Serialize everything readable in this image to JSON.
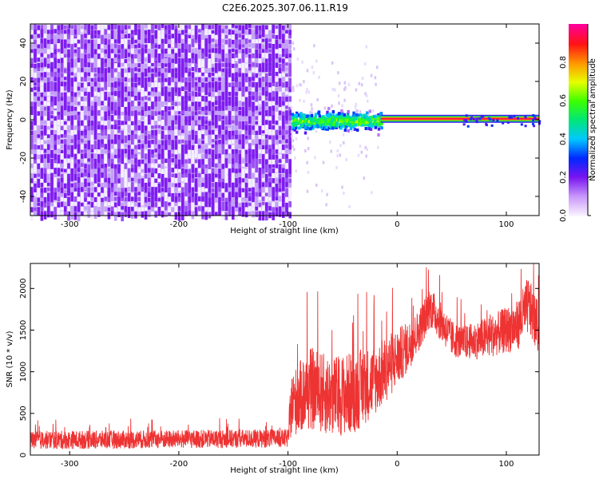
{
  "title": "C2E6.2025.307.06.11.R19",
  "chart_data": [
    {
      "type": "heatmap",
      "name": "spectrogram",
      "xlabel": "Height of straight line (km)",
      "ylabel": "Frequency (Hz)",
      "xlim": [
        -336,
        130
      ],
      "ylim": [
        -50,
        50
      ],
      "xticks": [
        -300,
        -200,
        -100,
        0,
        100
      ],
      "yticks": [
        -40,
        -20,
        0,
        20,
        40
      ],
      "colorbar": {
        "label": "Normalized spectral amplitude",
        "range": [
          0,
          1
        ],
        "ticks": [
          0.0,
          0.2,
          0.4,
          0.6,
          0.8
        ]
      },
      "features": [
        {
          "kind": "noise",
          "x_range": [
            -336,
            -97
          ],
          "f_range": [
            -50,
            50
          ],
          "level": "low"
        },
        {
          "kind": "noise-burst",
          "x_range": [
            -97,
            -15
          ],
          "f_range": [
            -8,
            8
          ],
          "level": "medium"
        },
        {
          "kind": "tone",
          "x_range": [
            -15,
            130
          ],
          "f_center": 0.5,
          "level": "high"
        }
      ]
    },
    {
      "type": "line",
      "name": "snr",
      "xlabel": "Height of straight line (km)",
      "ylabel": "SNR (10 * v/v)",
      "xlim": [
        -336,
        130
      ],
      "ylim": [
        0,
        2300
      ],
      "xticks": [
        -300,
        -200,
        -100,
        0,
        100
      ],
      "yticks": [
        0,
        500,
        1000,
        1500,
        2000
      ],
      "color": "#ee3333",
      "envelope": {
        "x": [
          -336,
          -250,
          -160,
          -100,
          -97,
          -80,
          -60,
          -40,
          -20,
          -5,
          10,
          20,
          30,
          40,
          50,
          60,
          70,
          80,
          90,
          100,
          110,
          120,
          130
        ],
        "mean": [
          180,
          185,
          195,
          200,
          600,
          800,
          700,
          750,
          900,
          1100,
          1300,
          1500,
          1780,
          1600,
          1400,
          1350,
          1370,
          1400,
          1450,
          1500,
          1550,
          1800,
          1500
        ],
        "spread": [
          110,
          110,
          110,
          110,
          380,
          500,
          480,
          500,
          420,
          380,
          300,
          250,
          250,
          230,
          220,
          200,
          220,
          250,
          260,
          280,
          300,
          350,
          300
        ]
      }
    }
  ]
}
